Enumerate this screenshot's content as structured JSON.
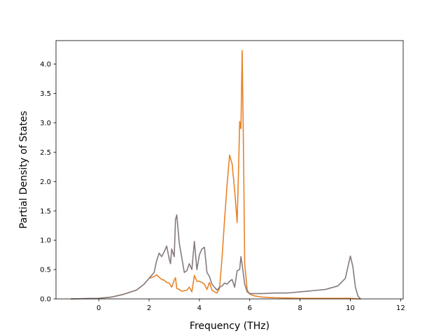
{
  "chart_data": {
    "type": "line",
    "xlabel": "Frequency (THz)",
    "ylabel": "Partial Density of States",
    "xlim": [
      -1.7,
      12.1
    ],
    "ylim": [
      0,
      4.4
    ],
    "xticks": [
      0,
      2,
      4,
      6,
      8,
      10,
      12
    ],
    "yticks": [
      0.0,
      0.5,
      1.0,
      1.5,
      2.0,
      2.5,
      3.0,
      3.5,
      4.0
    ],
    "xtick_labels": [
      "0",
      "2",
      "4",
      "6",
      "8",
      "10",
      "12"
    ],
    "ytick_labels": [
      "0.0",
      "0.5",
      "1.0",
      "1.5",
      "2.0",
      "2.5",
      "3.0",
      "3.5",
      "4.0"
    ],
    "grid": false,
    "legend": "none",
    "series": [
      {
        "color": "#e8832a",
        "x": [
          -1.1,
          0.0,
          0.5,
          1.0,
          1.5,
          1.8,
          2.0,
          2.2,
          2.3,
          2.4,
          2.5,
          2.6,
          2.7,
          2.8,
          2.9,
          3.0,
          3.05,
          3.1,
          3.2,
          3.3,
          3.4,
          3.5,
          3.6,
          3.7,
          3.8,
          3.9,
          4.0,
          4.1,
          4.2,
          4.3,
          4.4,
          4.5,
          4.6,
          4.7,
          4.8,
          4.9,
          5.0,
          5.1,
          5.2,
          5.3,
          5.4,
          5.5,
          5.55,
          5.6,
          5.65,
          5.7,
          5.75,
          5.8,
          5.9,
          6.0,
          6.2,
          6.5,
          7.0,
          8.0,
          9.0,
          10.0,
          10.3,
          10.4
        ],
        "y": [
          0.0,
          0.01,
          0.03,
          0.08,
          0.15,
          0.25,
          0.35,
          0.38,
          0.41,
          0.37,
          0.33,
          0.32,
          0.28,
          0.27,
          0.2,
          0.32,
          0.36,
          0.18,
          0.16,
          0.13,
          0.14,
          0.15,
          0.2,
          0.12,
          0.4,
          0.3,
          0.3,
          0.28,
          0.25,
          0.16,
          0.28,
          0.15,
          0.12,
          0.1,
          0.18,
          0.7,
          1.35,
          1.95,
          2.45,
          2.3,
          1.85,
          1.3,
          2.1,
          3.02,
          2.9,
          4.23,
          2.6,
          0.6,
          0.15,
          0.08,
          0.05,
          0.03,
          0.02,
          0.01,
          0.01,
          0.01,
          0.0,
          0.0
        ]
      },
      {
        "color": "#857a7d",
        "x": [
          -1.1,
          0.0,
          0.5,
          1.0,
          1.5,
          1.8,
          2.0,
          2.2,
          2.3,
          2.4,
          2.5,
          2.6,
          2.7,
          2.8,
          2.85,
          2.9,
          3.0,
          3.05,
          3.1,
          3.2,
          3.3,
          3.4,
          3.5,
          3.6,
          3.7,
          3.8,
          3.9,
          4.0,
          4.1,
          4.2,
          4.3,
          4.4,
          4.5,
          4.6,
          4.7,
          4.8,
          4.9,
          5.0,
          5.1,
          5.2,
          5.3,
          5.4,
          5.5,
          5.6,
          5.65,
          5.7,
          5.8,
          5.9,
          6.0,
          6.5,
          7.0,
          7.5,
          8.0,
          8.3,
          8.5,
          9.0,
          9.5,
          9.8,
          10.0,
          10.1,
          10.2,
          10.3,
          10.4
        ],
        "y": [
          0.0,
          0.01,
          0.03,
          0.08,
          0.15,
          0.25,
          0.35,
          0.45,
          0.65,
          0.78,
          0.72,
          0.8,
          0.9,
          0.68,
          0.6,
          0.85,
          0.72,
          1.35,
          1.43,
          0.95,
          0.7,
          0.45,
          0.48,
          0.6,
          0.5,
          0.98,
          0.5,
          0.75,
          0.85,
          0.88,
          0.45,
          0.38,
          0.25,
          0.2,
          0.15,
          0.2,
          0.22,
          0.27,
          0.25,
          0.3,
          0.33,
          0.2,
          0.48,
          0.5,
          0.72,
          0.58,
          0.25,
          0.12,
          0.09,
          0.09,
          0.1,
          0.1,
          0.12,
          0.13,
          0.14,
          0.16,
          0.22,
          0.35,
          0.73,
          0.55,
          0.2,
          0.05,
          0.0
        ]
      }
    ]
  }
}
